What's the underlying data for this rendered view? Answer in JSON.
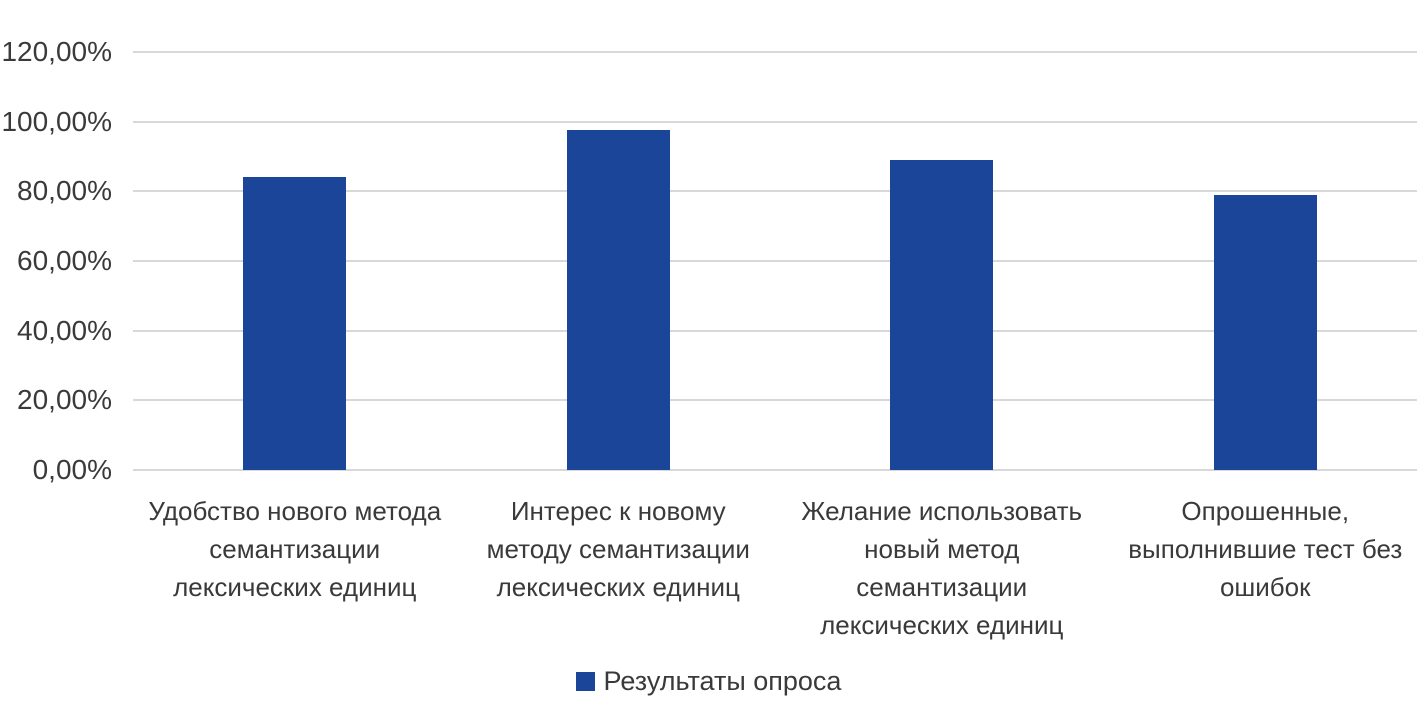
{
  "chart_data": {
    "type": "bar",
    "title": "",
    "xlabel": "",
    "ylabel": "",
    "categories": [
      "Удобство нового метода семантизации лексических единиц",
      "Интерес к новому методу семантизации лексических единиц",
      "Желание использовать новый метод семантизации лексических единиц",
      "Опрошенные, выполнившие тест без ошибок"
    ],
    "category_lines": [
      [
        "Удобство нового метода",
        "семантизации",
        "лексических единиц"
      ],
      [
        "Интерес к новому",
        "методу семантизации",
        "лексических единиц"
      ],
      [
        "Желание использовать",
        "новый метод",
        "семантизации",
        "лексических единиц"
      ],
      [
        "Опрошенные,",
        "выполнившие тест без",
        "ошибок"
      ]
    ],
    "series": [
      {
        "name": "Результаты опроса",
        "values": [
          84,
          97.5,
          89,
          79
        ]
      }
    ],
    "value_unit": "%",
    "ylim": [
      0,
      120
    ],
    "ytick_values": [
      0,
      20,
      40,
      60,
      80,
      100,
      120
    ],
    "ytick_labels": [
      "0,00%",
      "20,00%",
      "40,00%",
      "60,00%",
      "80,00%",
      "100,00%",
      "120,00%"
    ],
    "grid": "horizontal",
    "legend_position": "bottom",
    "colors": {
      "bar": "#1b4598",
      "gridline": "#d8d8d8",
      "text": "#3a3a3a",
      "background": "#ffffff"
    }
  },
  "legend": {
    "swatch_icon": "legend-swatch-square",
    "label": "Результаты опроса"
  }
}
